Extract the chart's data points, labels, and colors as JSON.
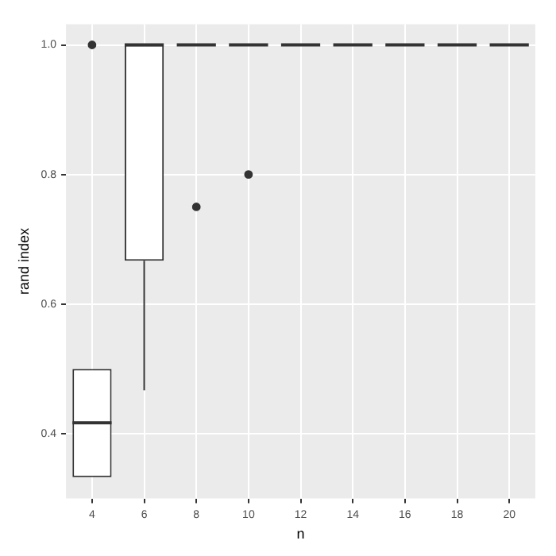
{
  "chart_data": {
    "type": "box",
    "xlabel": "n",
    "ylabel": "rand index",
    "color": "#333333",
    "categories": [
      "4",
      "6",
      "8",
      "10",
      "12",
      "14",
      "16",
      "18",
      "20"
    ],
    "boxes": [
      {
        "low": 0.333,
        "q1": 0.333,
        "median": 0.417,
        "q3": 0.5,
        "high": 0.5,
        "outliers": [
          1.0
        ]
      },
      {
        "low": 0.467,
        "q1": 0.667,
        "median": 1.0,
        "q3": 1.0,
        "high": 1.0
      },
      {
        "low": 1.0,
        "q1": 1.0,
        "median": 1.0,
        "q3": 1.0,
        "high": 1.0,
        "outliers": [
          0.75
        ]
      },
      {
        "low": 1.0,
        "q1": 1.0,
        "median": 1.0,
        "q3": 1.0,
        "high": 1.0,
        "outliers": [
          0.8
        ]
      },
      {
        "low": 1.0,
        "q1": 1.0,
        "median": 1.0,
        "q3": 1.0,
        "high": 1.0
      },
      {
        "low": 1.0,
        "q1": 1.0,
        "median": 1.0,
        "q3": 1.0,
        "high": 1.0
      },
      {
        "low": 1.0,
        "q1": 1.0,
        "median": 1.0,
        "q3": 1.0,
        "high": 1.0
      },
      {
        "low": 1.0,
        "q1": 1.0,
        "median": 1.0,
        "q3": 1.0,
        "high": 1.0
      },
      {
        "low": 1.0,
        "q1": 1.0,
        "median": 1.0,
        "q3": 1.0,
        "high": 1.0
      }
    ],
    "ylim": [
      0.3,
      1.032
    ],
    "yticks": [
      0.4,
      0.6,
      0.8,
      {
        "value": 1.0,
        "label": "1.0"
      }
    ],
    "grid": true
  }
}
